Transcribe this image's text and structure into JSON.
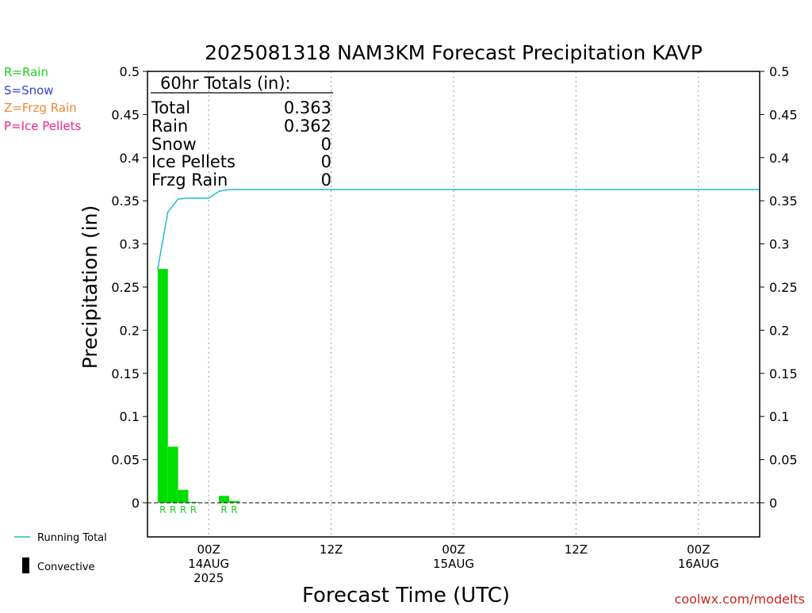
{
  "title": "2025081318 NAM3KM Forecast Precipitation KAVP",
  "ylabel": "Precipitation (in)",
  "xlabel": "Forecast Time (UTC)",
  "watermark": "coolwx.com/modelts",
  "legend_left": [
    {
      "text": "R=Rain",
      "color": "#22cc22"
    },
    {
      "text": "S=Snow",
      "color": "#3344dd"
    },
    {
      "text": "Z=Frzg Rain",
      "color": "#ee8833"
    },
    {
      "text": "P=Ice Pellets",
      "color": "#ee2288"
    }
  ],
  "legend_bottom": {
    "running_total": "Running Total",
    "convective": "Convective"
  },
  "totals": {
    "header": "60hr Totals (in):",
    "rows": [
      {
        "label": "Total",
        "value": "0.363"
      },
      {
        "label": "Rain",
        "value": "0.362"
      },
      {
        "label": "Snow",
        "value": "0"
      },
      {
        "label": "Ice Pellets",
        "value": "0"
      },
      {
        "label": "Frzg Rain",
        "value": "0"
      }
    ]
  },
  "colors": {
    "rain_bar": "#00dd00",
    "running_total": "#22bbcc",
    "watermark": "#cc2222",
    "axis": "#000000",
    "grid": "#999999"
  },
  "chart_data": {
    "type": "bar",
    "title": "2025081318 NAM3KM Forecast Precipitation KAVP",
    "xlabel": "Forecast Time (UTC)",
    "ylabel": "Precipitation (in)",
    "ylim": [
      0,
      0.5
    ],
    "y_ticks": [
      0,
      0.05,
      0.1,
      0.15,
      0.2,
      0.25,
      0.3,
      0.35,
      0.4,
      0.45,
      0.5
    ],
    "y_tick_labels": [
      "0",
      "0.05",
      "0.1",
      "0.15",
      "0.2",
      "0.25",
      "0.3",
      "0.35",
      "0.4",
      "0.45",
      "0.5"
    ],
    "xlim_hours": [
      18,
      78
    ],
    "x_ticks": [
      {
        "hour": 24,
        "lines": [
          "00Z",
          "14AUG",
          "2025"
        ]
      },
      {
        "hour": 36,
        "lines": [
          "12Z"
        ]
      },
      {
        "hour": 48,
        "lines": [
          "00Z",
          "15AUG"
        ]
      },
      {
        "hour": 60,
        "lines": [
          "12Z"
        ]
      },
      {
        "hour": 72,
        "lines": [
          "00Z",
          "16AUG"
        ]
      }
    ],
    "grid": "vertical dotted",
    "series": [
      {
        "name": "Rain",
        "kind": "bar",
        "bar_width_hours": 1,
        "points": [
          {
            "hour": 19,
            "value": 0.271,
            "ptype": "R"
          },
          {
            "hour": 20,
            "value": 0.065,
            "ptype": "R"
          },
          {
            "hour": 21,
            "value": 0.015,
            "ptype": "R"
          },
          {
            "hour": 22,
            "value": 0.001,
            "ptype": "R"
          },
          {
            "hour": 25,
            "value": 0.008,
            "ptype": "R"
          },
          {
            "hour": 26,
            "value": 0.002,
            "ptype": "R"
          }
        ]
      },
      {
        "name": "Running Total",
        "kind": "line",
        "points": [
          {
            "hour": 19,
            "value": 0.271
          },
          {
            "hour": 20,
            "value": 0.337
          },
          {
            "hour": 21,
            "value": 0.352
          },
          {
            "hour": 22,
            "value": 0.353
          },
          {
            "hour": 23,
            "value": 0.353
          },
          {
            "hour": 24,
            "value": 0.353
          },
          {
            "hour": 25,
            "value": 0.361
          },
          {
            "hour": 26,
            "value": 0.363
          },
          {
            "hour": 78,
            "value": 0.363
          }
        ]
      }
    ]
  }
}
